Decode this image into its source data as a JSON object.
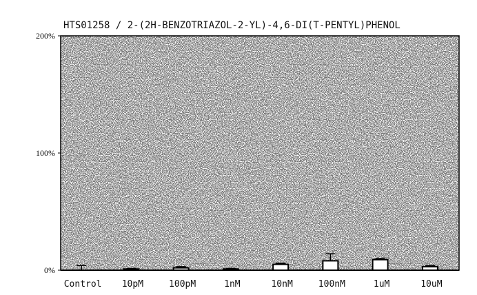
{
  "chart_data": {
    "type": "bar",
    "title": "HTS01258 / 2-(2H-BENZOTRIAZOL-2-YL)-4,6-DI(T-PENTYL)PHENOL",
    "xlabel": "",
    "ylabel": "",
    "categories": [
      "Control",
      "10pM",
      "100pM",
      "1nM",
      "10nM",
      "100nM",
      "1uM",
      "10uM"
    ],
    "values": [
      0,
      1,
      2,
      1,
      5,
      8,
      9,
      3
    ],
    "error": [
      4,
      0.5,
      1,
      0.5,
      1,
      6,
      1,
      1
    ],
    "ylim": [
      0,
      200
    ],
    "yticks": [
      "0%",
      "100%",
      "200%"
    ],
    "ytick_values": [
      0,
      100,
      200
    ],
    "grid": false,
    "background": "stippled"
  }
}
